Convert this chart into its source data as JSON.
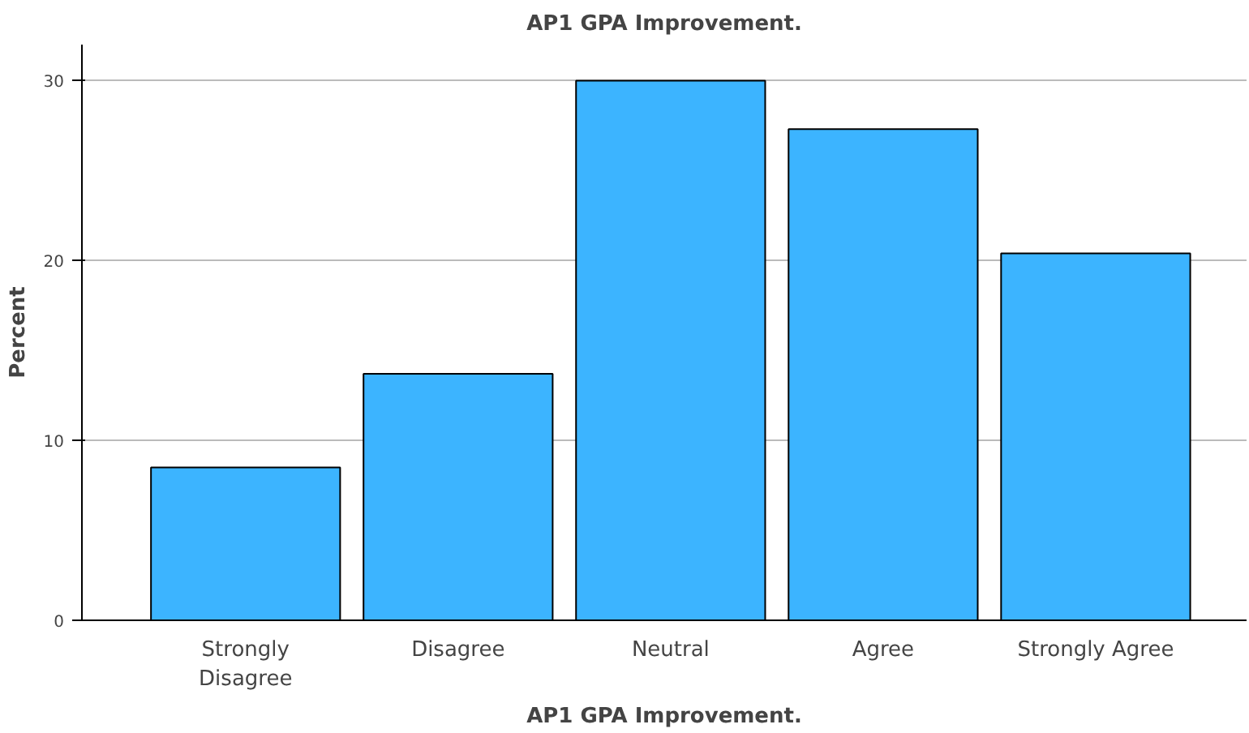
{
  "chart_data": {
    "type": "bar",
    "title": "AP1 GPA Improvement.",
    "xlabel": "AP1 GPA Improvement.",
    "ylabel": "Percent",
    "categories": [
      "Strongly Disagree",
      "Disagree",
      "Neutral",
      "Agree",
      "Strongly Agree"
    ],
    "values": [
      8.5,
      13.7,
      30.0,
      27.3,
      20.4
    ],
    "color": "#3cb4ff",
    "ylim": [
      0,
      32
    ],
    "yticks": [
      0,
      10,
      20,
      30
    ],
    "grid": "y"
  }
}
